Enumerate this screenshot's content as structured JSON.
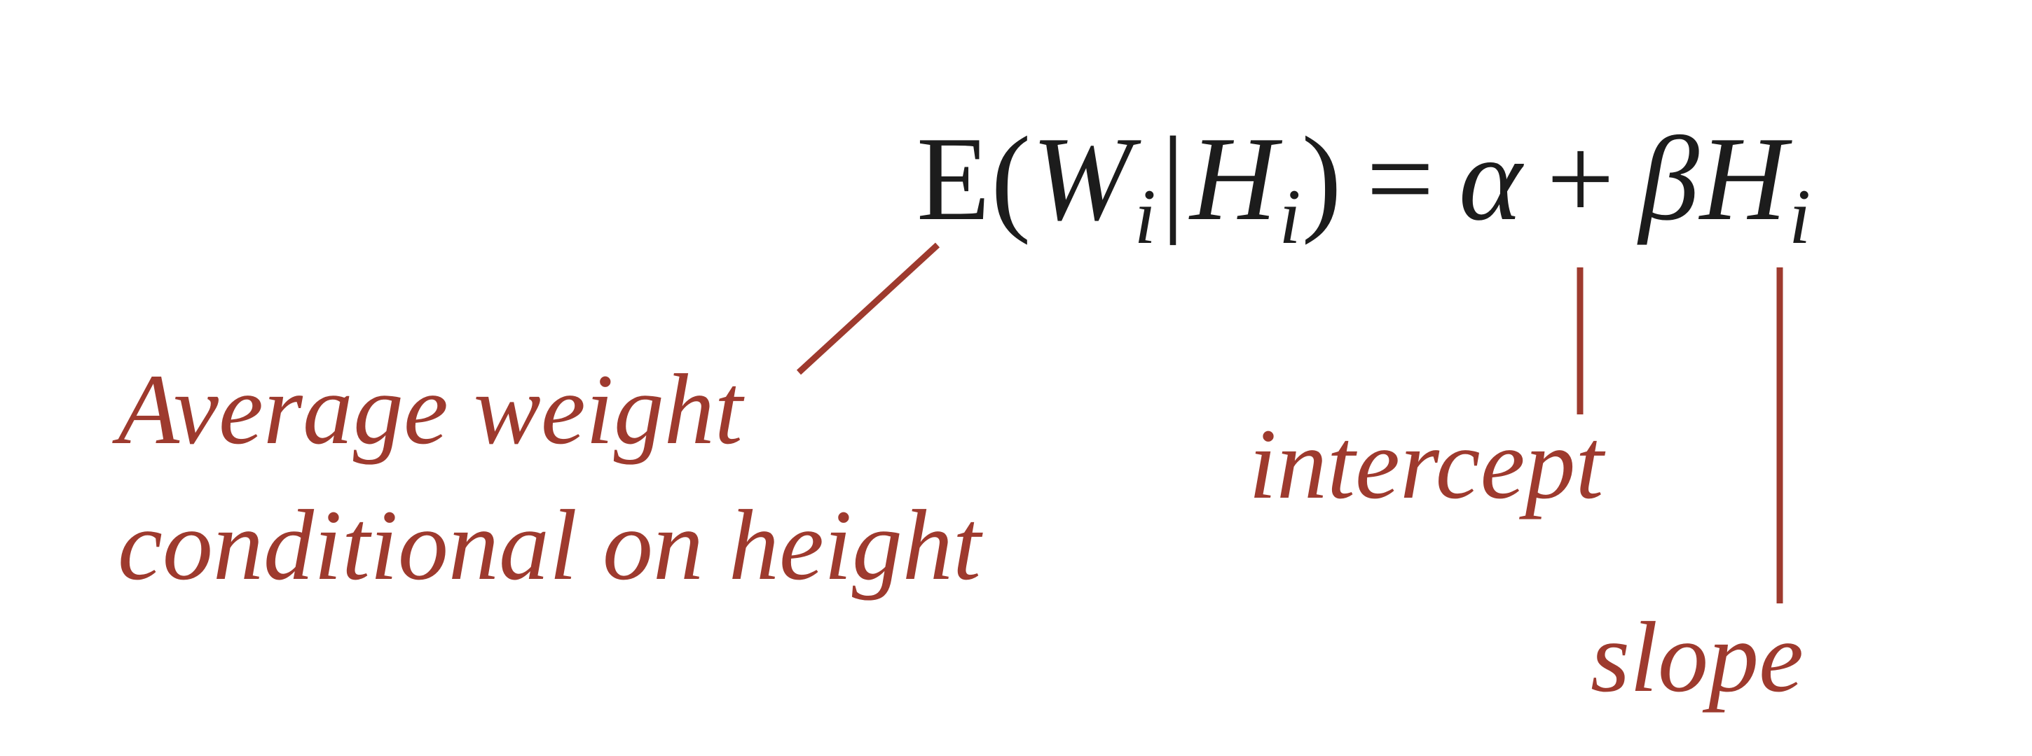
{
  "equation": {
    "E": "E",
    "open_paren": "(",
    "W": "W",
    "W_sub": "i",
    "bar": "|",
    "H1": "H",
    "H1_sub": "i",
    "close_paren": ")",
    "equals": "=",
    "alpha": "α",
    "plus": "+",
    "beta": "β",
    "H2": "H",
    "H2_sub": "i"
  },
  "annotations": {
    "average_line1": "Average weight",
    "average_line2": "conditional on height",
    "intercept": "intercept",
    "slope": "slope"
  },
  "colors": {
    "annotation": "#9e3a2e",
    "equation": "#1c1c1c",
    "background": "#ffffff"
  }
}
